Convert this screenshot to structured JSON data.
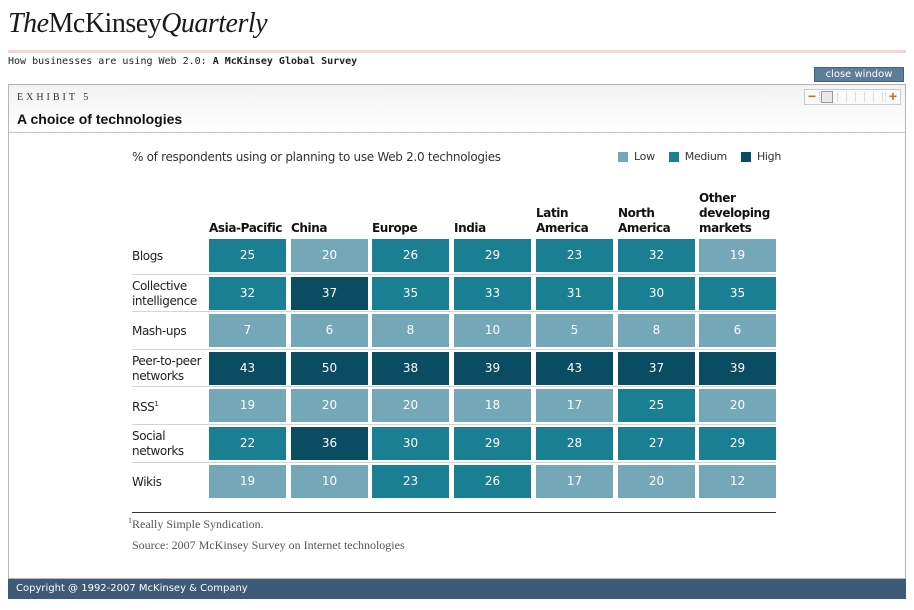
{
  "masthead": {
    "the": "The",
    "name": "McKinsey",
    "quarterly": "Quarterly"
  },
  "subtitle": {
    "prefix": "How businesses are using Web 2.0: ",
    "bold": "A McKinsey Global Survey"
  },
  "close_label": "close window",
  "exhibit": {
    "label": "EXHIBIT 5",
    "title": "A choice of technologies"
  },
  "zoom": {
    "minus": "−",
    "plus": "+"
  },
  "caption": "% of respondents using or planning to use Web 2.0 technologies",
  "legend": [
    {
      "label": "Low",
      "color": "#74a8b9"
    },
    {
      "label": "Medium",
      "color": "#1a7f93"
    },
    {
      "label": "High",
      "color": "#0a4d63"
    }
  ],
  "columns": [
    [
      "Asia-Pacific"
    ],
    [
      "China"
    ],
    [
      "Europe"
    ],
    [
      "India"
    ],
    [
      "Latin",
      "America"
    ],
    [
      "North",
      "America"
    ],
    [
      "Other",
      "developing",
      "markets"
    ]
  ],
  "rows": [
    {
      "label": [
        "Blogs"
      ],
      "values": [
        25,
        20,
        26,
        29,
        23,
        32,
        19
      ],
      "levels": [
        "m",
        "l",
        "m",
        "m",
        "m",
        "m",
        "l"
      ]
    },
    {
      "label": [
        "Collective",
        "intelligence"
      ],
      "values": [
        32,
        37,
        35,
        33,
        31,
        30,
        35
      ],
      "levels": [
        "m",
        "h",
        "m",
        "m",
        "m",
        "m",
        "m"
      ]
    },
    {
      "label": [
        "Mash-ups"
      ],
      "values": [
        7,
        6,
        8,
        10,
        5,
        8,
        6
      ],
      "levels": [
        "l",
        "l",
        "l",
        "l",
        "l",
        "l",
        "l"
      ]
    },
    {
      "label": [
        "Peer-to-peer",
        "networks"
      ],
      "values": [
        43,
        50,
        38,
        39,
        43,
        37,
        39
      ],
      "levels": [
        "h",
        "h",
        "h",
        "h",
        "h",
        "h",
        "h"
      ]
    },
    {
      "label": [
        "RSS"
      ],
      "sup": "1",
      "values": [
        19,
        20,
        20,
        18,
        17,
        25,
        20
      ],
      "levels": [
        "l",
        "l",
        "l",
        "l",
        "l",
        "m",
        "l"
      ]
    },
    {
      "label": [
        "Social",
        "networks"
      ],
      "values": [
        22,
        36,
        30,
        29,
        28,
        27,
        29
      ],
      "levels": [
        "m",
        "h",
        "m",
        "m",
        "m",
        "m",
        "m"
      ]
    },
    {
      "label": [
        "Wikis"
      ],
      "values": [
        19,
        10,
        23,
        26,
        17,
        20,
        12
      ],
      "levels": [
        "l",
        "l",
        "m",
        "m",
        "l",
        "l",
        "l"
      ]
    }
  ],
  "footnote": {
    "mark": "1",
    "text": "Really Simple Syndication."
  },
  "source": "Source: 2007 McKinsey Survey on Internet technologies",
  "footer": "Copyright @ 1992-2007 McKinsey & Company"
}
